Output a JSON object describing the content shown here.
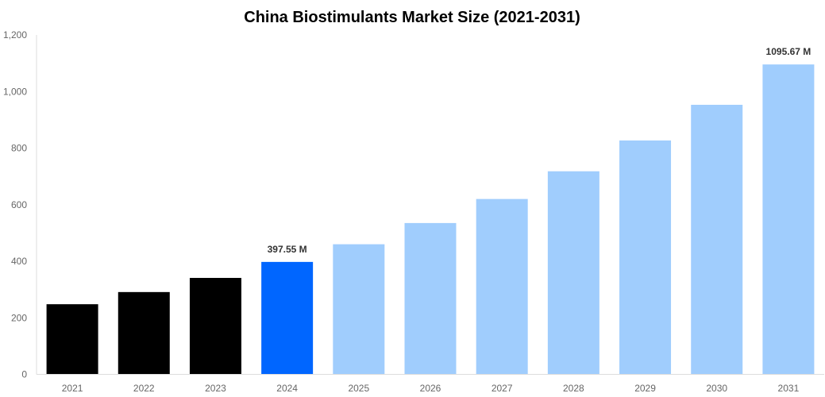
{
  "chart_data": {
    "type": "bar",
    "title": "China Biostimulants Market Size (2021-2031)",
    "xlabel": "",
    "ylabel": "",
    "categories": [
      "2021",
      "2022",
      "2023",
      "2024",
      "2025",
      "2026",
      "2027",
      "2028",
      "2029",
      "2030",
      "2031"
    ],
    "values": [
      248,
      291,
      341,
      397.55,
      460,
      535,
      620,
      718,
      827,
      953,
      1095.67
    ],
    "data_labels": {
      "3": "397.55 M",
      "10": "1095.67 M"
    },
    "ylim": [
      0,
      1200
    ],
    "yticks": [
      0,
      200,
      400,
      600,
      800,
      1000,
      1200
    ],
    "ytick_labels": [
      "0",
      "200",
      "400",
      "600",
      "800",
      "1,000",
      "1,200"
    ],
    "grid": false,
    "legend": "none",
    "colors": {
      "historical": "#000000",
      "current": "#0066ff",
      "forecast": "#a0cdfd",
      "axis": "#dddddd"
    },
    "bar_color_groups": [
      "historical",
      "historical",
      "historical",
      "current",
      "forecast",
      "forecast",
      "forecast",
      "forecast",
      "forecast",
      "forecast",
      "forecast"
    ]
  }
}
